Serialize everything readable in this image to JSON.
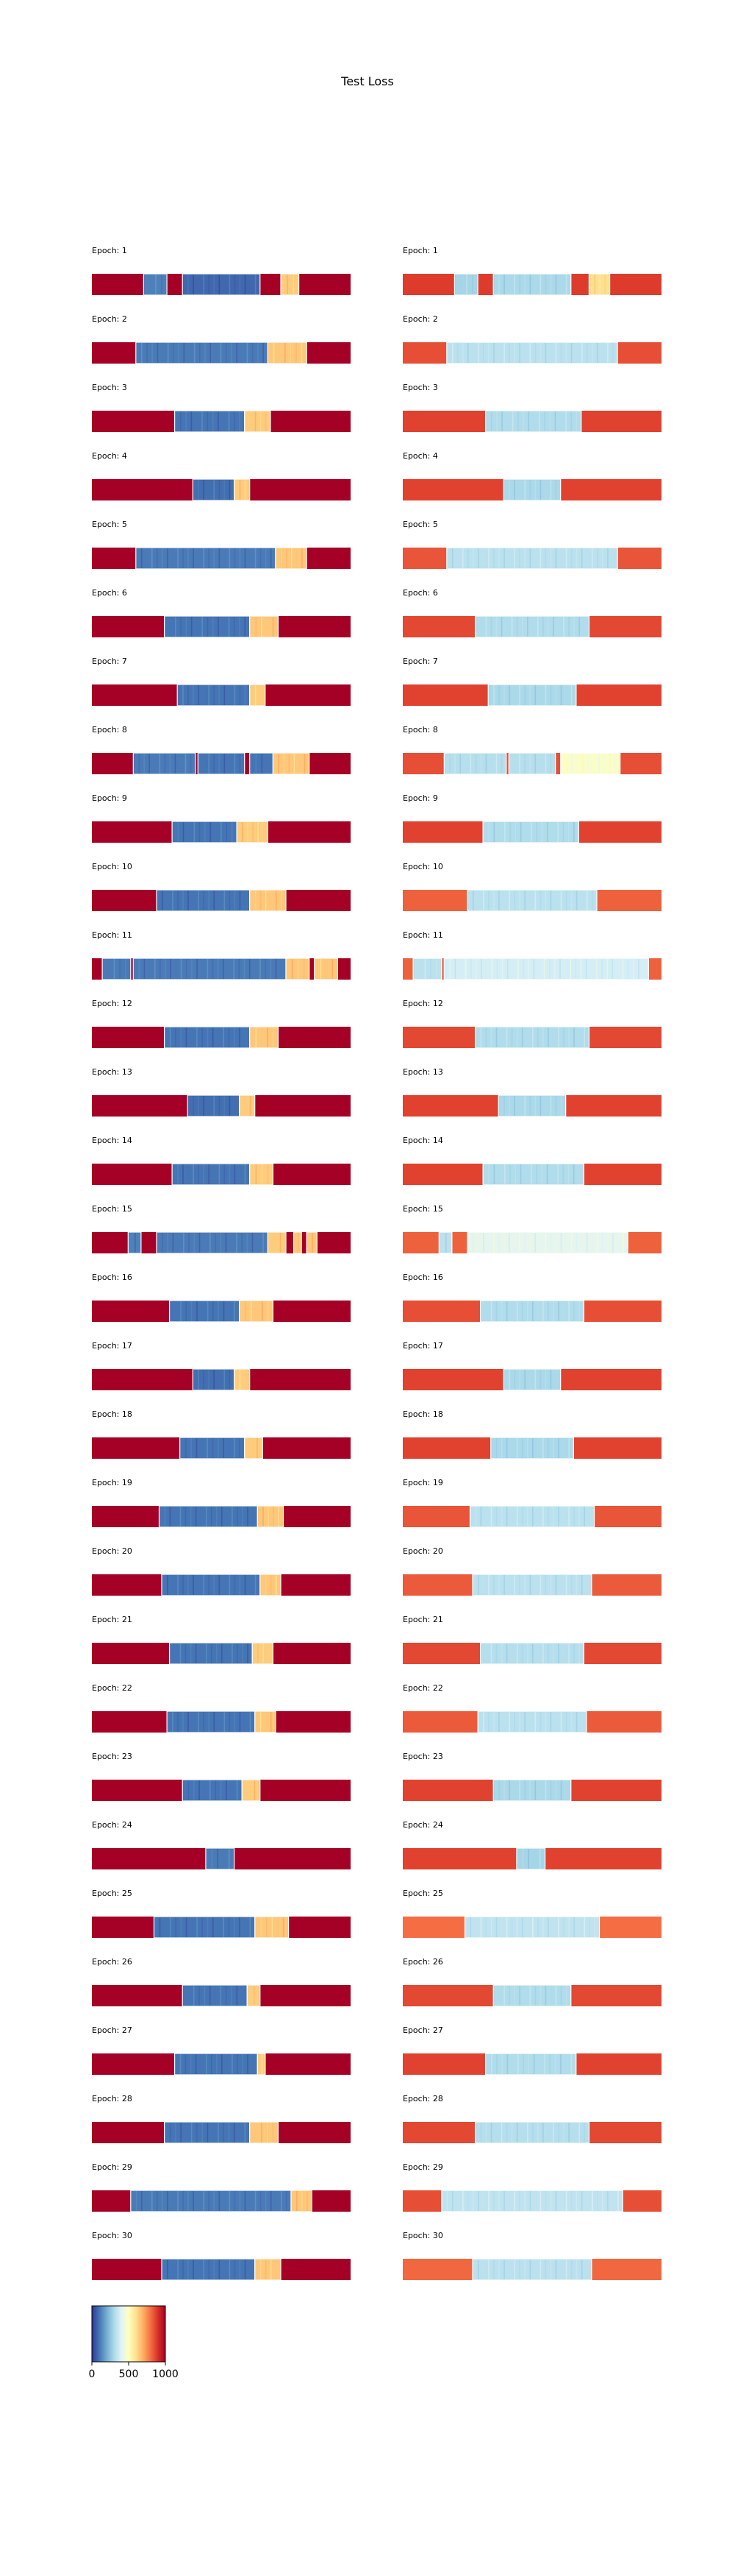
{
  "chart_data": {
    "type": "heatmap",
    "title": "Test Loss",
    "panel_label_prefix": "Epoch: ",
    "colormap": "RdYlBu_r",
    "colorbar": {
      "ticks": [
        0,
        500,
        1000
      ],
      "range": [
        0,
        1000
      ]
    },
    "columns": [
      {
        "name": "left",
        "epochs": [
          {
            "epoch": 1,
            "bg": 1000,
            "segments": [
              {
                "start": 0.2,
                "end": 0.29,
                "value": 120
              },
              {
                "start": 0.35,
                "end": 0.65,
                "value": 80
              },
              {
                "start": 0.73,
                "end": 0.8,
                "value": 640
              }
            ]
          },
          {
            "epoch": 2,
            "bg": 1000,
            "segments": [
              {
                "start": 0.17,
                "end": 0.68,
                "value": 110
              },
              {
                "start": 0.68,
                "end": 0.83,
                "value": 650
              }
            ]
          },
          {
            "epoch": 3,
            "bg": 1000,
            "segments": [
              {
                "start": 0.32,
                "end": 0.59,
                "value": 100
              },
              {
                "start": 0.59,
                "end": 0.69,
                "value": 640
              }
            ]
          },
          {
            "epoch": 4,
            "bg": 1000,
            "segments": [
              {
                "start": 0.39,
                "end": 0.55,
                "value": 90
              },
              {
                "start": 0.55,
                "end": 0.61,
                "value": 640
              }
            ]
          },
          {
            "epoch": 5,
            "bg": 1000,
            "segments": [
              {
                "start": 0.17,
                "end": 0.71,
                "value": 110
              },
              {
                "start": 0.71,
                "end": 0.83,
                "value": 650
              }
            ]
          },
          {
            "epoch": 6,
            "bg": 1000,
            "segments": [
              {
                "start": 0.28,
                "end": 0.61,
                "value": 100
              },
              {
                "start": 0.61,
                "end": 0.72,
                "value": 650
              }
            ]
          },
          {
            "epoch": 7,
            "bg": 1000,
            "segments": [
              {
                "start": 0.33,
                "end": 0.61,
                "value": 100
              },
              {
                "start": 0.61,
                "end": 0.67,
                "value": 640
              }
            ]
          },
          {
            "epoch": 8,
            "bg": 1000,
            "segments": [
              {
                "start": 0.16,
                "end": 0.4,
                "value": 110
              },
              {
                "start": 0.41,
                "end": 0.59,
                "value": 100
              },
              {
                "start": 0.61,
                "end": 0.7,
                "value": 100
              },
              {
                "start": 0.7,
                "end": 0.84,
                "value": 650
              }
            ]
          },
          {
            "epoch": 9,
            "bg": 1000,
            "segments": [
              {
                "start": 0.31,
                "end": 0.56,
                "value": 100
              },
              {
                "start": 0.56,
                "end": 0.68,
                "value": 640
              }
            ]
          },
          {
            "epoch": 10,
            "bg": 1000,
            "segments": [
              {
                "start": 0.25,
                "end": 0.61,
                "value": 100
              },
              {
                "start": 0.61,
                "end": 0.75,
                "value": 650
              }
            ]
          },
          {
            "epoch": 11,
            "bg": 1000,
            "segments": [
              {
                "start": 0.04,
                "end": 0.15,
                "value": 110
              },
              {
                "start": 0.16,
                "end": 0.75,
                "value": 110
              },
              {
                "start": 0.75,
                "end": 0.84,
                "value": 650
              },
              {
                "start": 0.86,
                "end": 0.95,
                "value": 650
              }
            ]
          },
          {
            "epoch": 12,
            "bg": 1000,
            "segments": [
              {
                "start": 0.28,
                "end": 0.61,
                "value": 100
              },
              {
                "start": 0.61,
                "end": 0.72,
                "value": 650
              }
            ]
          },
          {
            "epoch": 13,
            "bg": 1000,
            "segments": [
              {
                "start": 0.37,
                "end": 0.57,
                "value": 90
              },
              {
                "start": 0.57,
                "end": 0.63,
                "value": 640
              }
            ]
          },
          {
            "epoch": 14,
            "bg": 1000,
            "segments": [
              {
                "start": 0.31,
                "end": 0.61,
                "value": 100
              },
              {
                "start": 0.61,
                "end": 0.7,
                "value": 640
              }
            ]
          },
          {
            "epoch": 15,
            "bg": 1000,
            "segments": [
              {
                "start": 0.14,
                "end": 0.19,
                "value": 120
              },
              {
                "start": 0.25,
                "end": 0.68,
                "value": 110
              },
              {
                "start": 0.68,
                "end": 0.75,
                "value": 640
              },
              {
                "start": 0.78,
                "end": 0.81,
                "value": 650
              },
              {
                "start": 0.83,
                "end": 0.87,
                "value": 650
              }
            ]
          },
          {
            "epoch": 16,
            "bg": 1000,
            "segments": [
              {
                "start": 0.3,
                "end": 0.57,
                "value": 100
              },
              {
                "start": 0.57,
                "end": 0.7,
                "value": 650
              }
            ]
          },
          {
            "epoch": 17,
            "bg": 1000,
            "segments": [
              {
                "start": 0.39,
                "end": 0.55,
                "value": 90
              },
              {
                "start": 0.55,
                "end": 0.61,
                "value": 640
              }
            ]
          },
          {
            "epoch": 18,
            "bg": 1000,
            "segments": [
              {
                "start": 0.34,
                "end": 0.59,
                "value": 100
              },
              {
                "start": 0.59,
                "end": 0.66,
                "value": 640
              }
            ]
          },
          {
            "epoch": 19,
            "bg": 1000,
            "segments": [
              {
                "start": 0.26,
                "end": 0.64,
                "value": 100
              },
              {
                "start": 0.64,
                "end": 0.74,
                "value": 650
              }
            ]
          },
          {
            "epoch": 20,
            "bg": 1000,
            "segments": [
              {
                "start": 0.27,
                "end": 0.65,
                "value": 100
              },
              {
                "start": 0.65,
                "end": 0.73,
                "value": 650
              }
            ]
          },
          {
            "epoch": 21,
            "bg": 1000,
            "segments": [
              {
                "start": 0.3,
                "end": 0.62,
                "value": 100
              },
              {
                "start": 0.62,
                "end": 0.7,
                "value": 640
              }
            ]
          },
          {
            "epoch": 22,
            "bg": 1000,
            "segments": [
              {
                "start": 0.29,
                "end": 0.63,
                "value": 100
              },
              {
                "start": 0.63,
                "end": 0.71,
                "value": 650
              }
            ]
          },
          {
            "epoch": 23,
            "bg": 1000,
            "segments": [
              {
                "start": 0.35,
                "end": 0.58,
                "value": 100
              },
              {
                "start": 0.58,
                "end": 0.65,
                "value": 640
              }
            ]
          },
          {
            "epoch": 24,
            "bg": 1000,
            "segments": [
              {
                "start": 0.44,
                "end": 0.55,
                "value": 110
              }
            ]
          },
          {
            "epoch": 25,
            "bg": 1000,
            "segments": [
              {
                "start": 0.24,
                "end": 0.63,
                "value": 100
              },
              {
                "start": 0.63,
                "end": 0.76,
                "value": 650
              }
            ]
          },
          {
            "epoch": 26,
            "bg": 1000,
            "segments": [
              {
                "start": 0.35,
                "end": 0.6,
                "value": 100
              },
              {
                "start": 0.6,
                "end": 0.65,
                "value": 640
              }
            ]
          },
          {
            "epoch": 27,
            "bg": 1000,
            "segments": [
              {
                "start": 0.32,
                "end": 0.64,
                "value": 100
              },
              {
                "start": 0.64,
                "end": 0.67,
                "value": 640
              }
            ]
          },
          {
            "epoch": 28,
            "bg": 1000,
            "segments": [
              {
                "start": 0.28,
                "end": 0.61,
                "value": 100
              },
              {
                "start": 0.61,
                "end": 0.72,
                "value": 650
              }
            ]
          },
          {
            "epoch": 29,
            "bg": 1000,
            "segments": [
              {
                "start": 0.15,
                "end": 0.77,
                "value": 110
              },
              {
                "start": 0.77,
                "end": 0.85,
                "value": 650
              }
            ]
          },
          {
            "epoch": 30,
            "bg": 1000,
            "segments": [
              {
                "start": 0.27,
                "end": 0.63,
                "value": 100
              },
              {
                "start": 0.63,
                "end": 0.73,
                "value": 650
              }
            ]
          }
        ]
      },
      {
        "name": "right",
        "epochs": [
          {
            "epoch": 1,
            "bg": 880,
            "segments": [
              {
                "start": 0.2,
                "end": 0.29,
                "value": 290
              },
              {
                "start": 0.35,
                "end": 0.65,
                "value": 300
              },
              {
                "start": 0.72,
                "end": 0.8,
                "value": 600
              }
            ]
          },
          {
            "epoch": 2,
            "bg": 850,
            "segments": [
              {
                "start": 0.17,
                "end": 0.83,
                "value": 330
              }
            ]
          },
          {
            "epoch": 3,
            "bg": 870,
            "segments": [
              {
                "start": 0.32,
                "end": 0.69,
                "value": 310
              }
            ]
          },
          {
            "epoch": 4,
            "bg": 870,
            "segments": [
              {
                "start": 0.39,
                "end": 0.61,
                "value": 300
              }
            ]
          },
          {
            "epoch": 5,
            "bg": 840,
            "segments": [
              {
                "start": 0.17,
                "end": 0.83,
                "value": 330
              }
            ]
          },
          {
            "epoch": 6,
            "bg": 860,
            "segments": [
              {
                "start": 0.28,
                "end": 0.72,
                "value": 310
              }
            ]
          },
          {
            "epoch": 7,
            "bg": 870,
            "segments": [
              {
                "start": 0.33,
                "end": 0.67,
                "value": 300
              }
            ]
          },
          {
            "epoch": 8,
            "bg": 850,
            "segments": [
              {
                "start": 0.16,
                "end": 0.4,
                "value": 320
              },
              {
                "start": 0.41,
                "end": 0.59,
                "value": 320
              },
              {
                "start": 0.61,
                "end": 0.84,
                "value": 480
              }
            ]
          },
          {
            "epoch": 9,
            "bg": 870,
            "segments": [
              {
                "start": 0.31,
                "end": 0.68,
                "value": 310
              }
            ]
          },
          {
            "epoch": 10,
            "bg": 820,
            "segments": [
              {
                "start": 0.25,
                "end": 0.75,
                "value": 330
              }
            ]
          },
          {
            "epoch": 11,
            "bg": 820,
            "segments": [
              {
                "start": 0.04,
                "end": 0.15,
                "value": 330
              },
              {
                "start": 0.16,
                "end": 0.95,
                "value": 380
              }
            ]
          },
          {
            "epoch": 12,
            "bg": 860,
            "segments": [
              {
                "start": 0.28,
                "end": 0.72,
                "value": 310
              }
            ]
          },
          {
            "epoch": 13,
            "bg": 870,
            "segments": [
              {
                "start": 0.37,
                "end": 0.63,
                "value": 300
              }
            ]
          },
          {
            "epoch": 14,
            "bg": 870,
            "segments": [
              {
                "start": 0.31,
                "end": 0.7,
                "value": 310
              }
            ]
          },
          {
            "epoch": 15,
            "bg": 820,
            "segments": [
              {
                "start": 0.14,
                "end": 0.19,
                "value": 330
              },
              {
                "start": 0.25,
                "end": 0.87,
                "value": 420
              }
            ]
          },
          {
            "epoch": 16,
            "bg": 850,
            "segments": [
              {
                "start": 0.3,
                "end": 0.7,
                "value": 310
              }
            ]
          },
          {
            "epoch": 17,
            "bg": 870,
            "segments": [
              {
                "start": 0.39,
                "end": 0.61,
                "value": 300
              }
            ]
          },
          {
            "epoch": 18,
            "bg": 870,
            "segments": [
              {
                "start": 0.34,
                "end": 0.66,
                "value": 300
              }
            ]
          },
          {
            "epoch": 19,
            "bg": 840,
            "segments": [
              {
                "start": 0.26,
                "end": 0.74,
                "value": 330
              }
            ]
          },
          {
            "epoch": 20,
            "bg": 830,
            "segments": [
              {
                "start": 0.27,
                "end": 0.73,
                "value": 330
              }
            ]
          },
          {
            "epoch": 21,
            "bg": 860,
            "segments": [
              {
                "start": 0.3,
                "end": 0.7,
                "value": 320
              }
            ]
          },
          {
            "epoch": 22,
            "bg": 830,
            "segments": [
              {
                "start": 0.29,
                "end": 0.71,
                "value": 330
              }
            ]
          },
          {
            "epoch": 23,
            "bg": 870,
            "segments": [
              {
                "start": 0.35,
                "end": 0.65,
                "value": 300
              }
            ]
          },
          {
            "epoch": 24,
            "bg": 870,
            "segments": [
              {
                "start": 0.44,
                "end": 0.55,
                "value": 290
              }
            ]
          },
          {
            "epoch": 25,
            "bg": 800,
            "segments": [
              {
                "start": 0.24,
                "end": 0.76,
                "value": 340
              }
            ]
          },
          {
            "epoch": 26,
            "bg": 860,
            "segments": [
              {
                "start": 0.35,
                "end": 0.65,
                "value": 310
              }
            ]
          },
          {
            "epoch": 27,
            "bg": 870,
            "segments": [
              {
                "start": 0.32,
                "end": 0.67,
                "value": 310
              }
            ]
          },
          {
            "epoch": 28,
            "bg": 860,
            "segments": [
              {
                "start": 0.28,
                "end": 0.72,
                "value": 320
              }
            ]
          },
          {
            "epoch": 29,
            "bg": 850,
            "segments": [
              {
                "start": 0.15,
                "end": 0.85,
                "value": 340
              }
            ]
          },
          {
            "epoch": 30,
            "bg": 810,
            "segments": [
              {
                "start": 0.27,
                "end": 0.73,
                "value": 330
              }
            ]
          }
        ]
      }
    ]
  }
}
